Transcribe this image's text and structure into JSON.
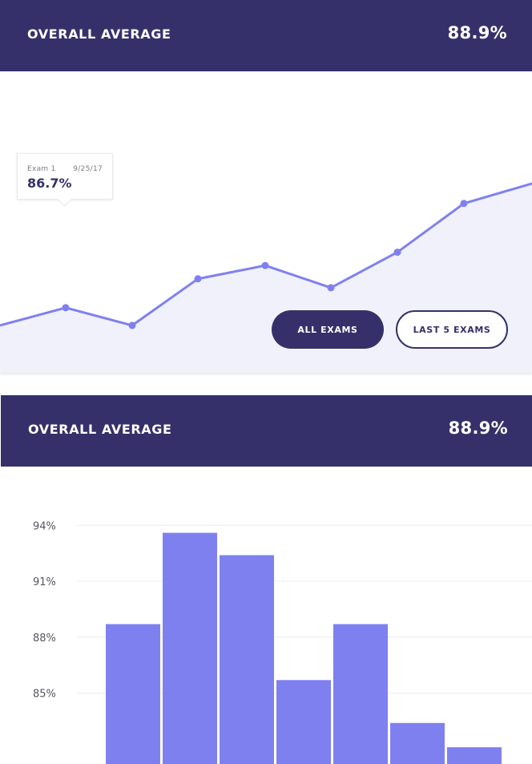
{
  "panels": [
    {
      "header": {
        "title": "OVERALL AVERAGE",
        "value": "88.9%"
      },
      "tooltip": {
        "label": "Exam 1",
        "date": "9/25/17",
        "value": "86.7%"
      },
      "buttons": {
        "all_exams": "ALL EXAMS",
        "last_5_exams": "LAST 5 EXAMS"
      }
    },
    {
      "header": {
        "title": "OVERALL AVERAGE",
        "value": "88.9%"
      }
    }
  ],
  "colors": {
    "header_bg": "#36306a",
    "accent": "#7f80f0",
    "area_fill": "#f1f1fb",
    "gridline": "#ececf1"
  },
  "chart_data": [
    {
      "type": "line",
      "values": [
        85.9,
        86.7,
        85.9,
        88.0,
        88.6,
        87.6,
        89.2,
        91.4,
        92.3
      ],
      "marker_indices": [
        1,
        2,
        3,
        4,
        5,
        6,
        7
      ],
      "highlight_index": 1,
      "ylim": [
        80,
        97
      ],
      "area_fill": true
    },
    {
      "type": "bar",
      "values": [
        88.7,
        93.6,
        92.4,
        85.7,
        88.7,
        83.4,
        82.1
      ],
      "ylim": [
        81.2,
        95
      ],
      "yticks": [
        85,
        88,
        91,
        94
      ],
      "ytick_labels": [
        "85%",
        "88%",
        "91%",
        "94%"
      ],
      "grid": true
    }
  ]
}
